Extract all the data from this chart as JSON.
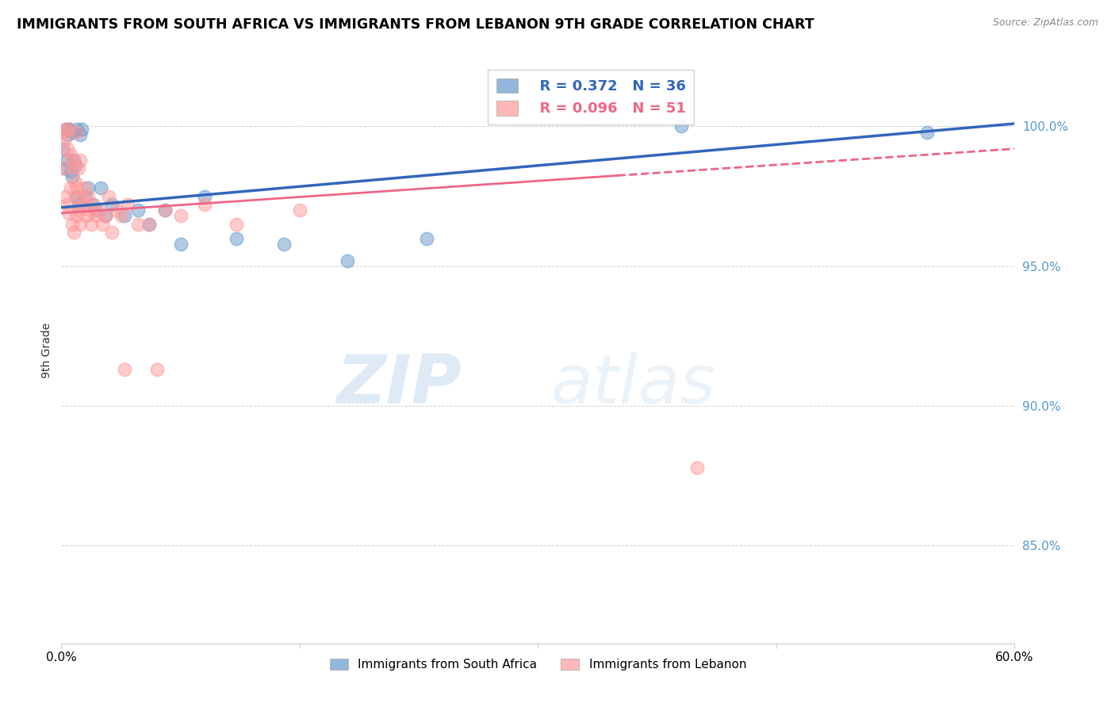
{
  "title": "IMMIGRANTS FROM SOUTH AFRICA VS IMMIGRANTS FROM LEBANON 9TH GRADE CORRELATION CHART",
  "source": "Source: ZipAtlas.com",
  "ylabel": "9th Grade",
  "yaxis_labels": [
    "100.0%",
    "95.0%",
    "90.0%",
    "85.0%"
  ],
  "yaxis_values": [
    1.0,
    0.95,
    0.9,
    0.85
  ],
  "xlim": [
    0.0,
    0.6
  ],
  "ylim": [
    0.815,
    1.025
  ],
  "legend_blue_r": "R = 0.372",
  "legend_blue_n": "N = 36",
  "legend_pink_r": "R = 0.096",
  "legend_pink_n": "N = 51",
  "legend_label_blue": "Immigrants from South Africa",
  "legend_label_pink": "Immigrants from Lebanon",
  "blue_color": "#6699CC",
  "pink_color": "#FF9999",
  "blue_line_color": "#3366BB",
  "pink_line_color": "#EE6688",
  "watermark_zip": "ZIP",
  "watermark_atlas": "atlas",
  "sa_x": [
    0.001,
    0.002,
    0.003,
    0.004,
    0.004,
    0.005,
    0.005,
    0.006,
    0.007,
    0.007,
    0.008,
    0.009,
    0.01,
    0.01,
    0.011,
    0.012,
    0.013,
    0.015,
    0.017,
    0.02,
    0.022,
    0.025,
    0.028,
    0.032,
    0.04,
    0.048,
    0.055,
    0.065,
    0.075,
    0.09,
    0.11,
    0.14,
    0.18,
    0.23,
    0.39,
    0.545
  ],
  "sa_y": [
    0.992,
    0.985,
    0.999,
    0.997,
    0.988,
    0.999,
    0.999,
    0.984,
    0.998,
    0.982,
    0.988,
    0.986,
    0.999,
    0.975,
    0.972,
    0.997,
    0.999,
    0.975,
    0.978,
    0.972,
    0.97,
    0.978,
    0.968,
    0.972,
    0.968,
    0.97,
    0.965,
    0.97,
    0.958,
    0.975,
    0.96,
    0.958,
    0.952,
    0.96,
    1.0,
    0.998
  ],
  "lb_x": [
    0.001,
    0.002,
    0.002,
    0.003,
    0.003,
    0.004,
    0.004,
    0.005,
    0.005,
    0.006,
    0.006,
    0.007,
    0.007,
    0.008,
    0.008,
    0.009,
    0.009,
    0.01,
    0.01,
    0.01,
    0.011,
    0.011,
    0.012,
    0.012,
    0.013,
    0.014,
    0.015,
    0.016,
    0.017,
    0.018,
    0.019,
    0.02,
    0.022,
    0.024,
    0.026,
    0.028,
    0.03,
    0.032,
    0.035,
    0.038,
    0.042,
    0.048,
    0.055,
    0.065,
    0.075,
    0.09,
    0.11,
    0.15,
    0.04,
    0.06,
    0.4
  ],
  "lb_y": [
    0.998,
    0.995,
    0.985,
    0.999,
    0.975,
    0.992,
    0.972,
    0.999,
    0.969,
    0.99,
    0.978,
    0.988,
    0.965,
    0.985,
    0.962,
    0.98,
    0.975,
    0.998,
    0.978,
    0.968,
    0.985,
    0.97,
    0.988,
    0.965,
    0.975,
    0.972,
    0.978,
    0.968,
    0.975,
    0.97,
    0.965,
    0.972,
    0.968,
    0.97,
    0.965,
    0.968,
    0.975,
    0.962,
    0.97,
    0.968,
    0.972,
    0.965,
    0.965,
    0.97,
    0.968,
    0.972,
    0.965,
    0.97,
    0.913,
    0.913,
    0.878
  ]
}
